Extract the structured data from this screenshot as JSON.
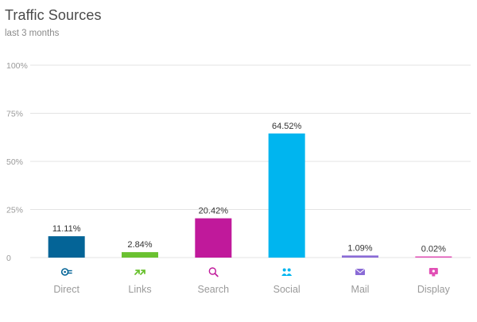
{
  "header": {
    "title": "Traffic Sources",
    "subtitle": "last 3 months"
  },
  "chart_data": {
    "type": "bar",
    "title": "Traffic Sources",
    "subtitle": "last 3 months",
    "categories": [
      "Direct",
      "Links",
      "Search",
      "Social",
      "Mail",
      "Display"
    ],
    "values": [
      11.11,
      2.84,
      20.42,
      64.52,
      1.09,
      0.02
    ],
    "data_labels": [
      "11.11%",
      "2.84%",
      "20.42%",
      "64.52%",
      "1.09%",
      "0.02%"
    ],
    "colors": [
      "#046497",
      "#6ac130",
      "#c0199b",
      "#00b5ef",
      "#8a6bd6",
      "#e14fb5"
    ],
    "icons": [
      "direct-icon",
      "links-icon",
      "search-icon",
      "social-icon",
      "mail-icon",
      "display-icon"
    ],
    "ylim": [
      0,
      100
    ],
    "y_ticks": [
      0,
      25,
      50,
      75,
      100
    ],
    "y_tick_labels": [
      "0",
      "25%",
      "50%",
      "75%",
      "100%"
    ],
    "grid": true,
    "xlabel": "",
    "ylabel": ""
  }
}
